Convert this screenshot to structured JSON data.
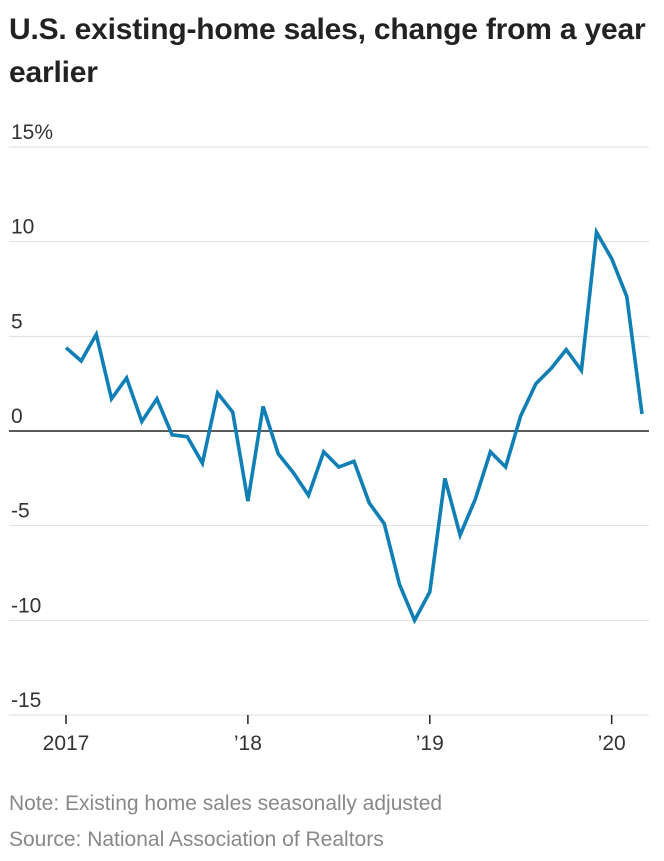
{
  "title": "U.S. existing-home sales, change from a year earlier",
  "note": "Note: Existing home sales seasonally adjusted",
  "source": "Source: National Association of Realtors",
  "colors": {
    "line": "#0f7fb5",
    "grid": "#dddddd",
    "zero": "#222222"
  },
  "chart_data": {
    "type": "line",
    "title": "U.S. existing-home sales, change from a year earlier",
    "xlabel": "",
    "ylabel": "",
    "ylim": [
      -15,
      15
    ],
    "yticks": [
      {
        "value": 15,
        "label": "15%"
      },
      {
        "value": 10,
        "label": "10"
      },
      {
        "value": 5,
        "label": "5"
      },
      {
        "value": 0,
        "label": "0"
      },
      {
        "value": -5,
        "label": "-5"
      },
      {
        "value": -10,
        "label": "-10"
      },
      {
        "value": -15,
        "label": "-15"
      }
    ],
    "xticks": [
      {
        "value": "2017-01",
        "label": "2017"
      },
      {
        "value": "2018-01",
        "label": "’18"
      },
      {
        "value": "2019-01",
        "label": "’19"
      },
      {
        "value": "2020-01",
        "label": "’20"
      }
    ],
    "grid": true,
    "series": [
      {
        "x": [
          "2017-01",
          "2017-02",
          "2017-03",
          "2017-04",
          "2017-05",
          "2017-06",
          "2017-07",
          "2017-08",
          "2017-09",
          "2017-10",
          "2017-11",
          "2017-12",
          "2018-01",
          "2018-02",
          "2018-03",
          "2018-04",
          "2018-05",
          "2018-06",
          "2018-07",
          "2018-08",
          "2018-09",
          "2018-10",
          "2018-11",
          "2018-12",
          "2019-01",
          "2019-02",
          "2019-03",
          "2019-04",
          "2019-05",
          "2019-06",
          "2019-07",
          "2019-08",
          "2019-09",
          "2019-10",
          "2019-11",
          "2019-12",
          "2020-01",
          "2020-02",
          "2020-03"
        ],
        "values": [
          4.4,
          3.7,
          5.1,
          1.7,
          2.8,
          0.5,
          1.7,
          -0.2,
          -0.3,
          -1.7,
          2.0,
          1.0,
          -3.7,
          1.3,
          -1.2,
          -2.2,
          -3.4,
          -1.1,
          -1.9,
          -1.6,
          -3.8,
          -4.9,
          -8.1,
          -10.0,
          -8.5,
          -2.5,
          -5.5,
          -3.6,
          -1.1,
          -1.9,
          0.8,
          2.5,
          3.3,
          4.3,
          3.2,
          10.5,
          9.1,
          7.1,
          0.9
        ]
      }
    ]
  }
}
